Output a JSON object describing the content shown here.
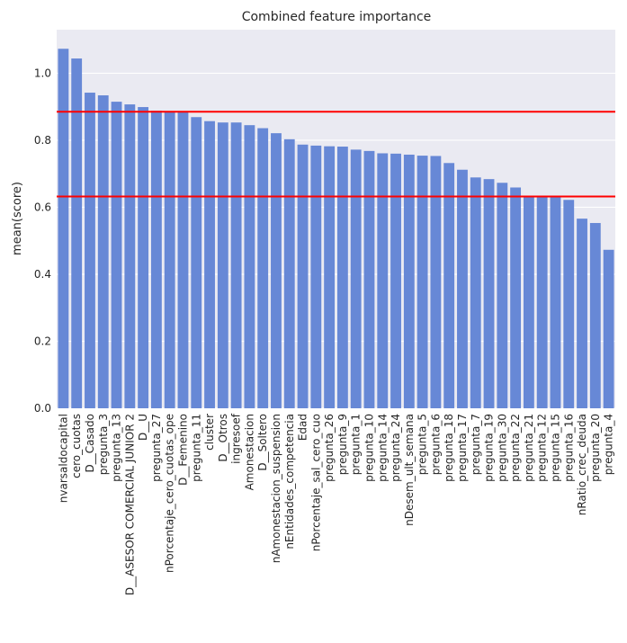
{
  "chart_data": {
    "type": "bar",
    "title": "Combined feature importance",
    "xlabel": "",
    "ylabel": "mean(score)",
    "ylim": [
      0,
      1.13
    ],
    "yticks": [
      "0.0",
      "0.2",
      "0.4",
      "0.6",
      "0.8",
      "1.0"
    ],
    "grid": true,
    "bar_color": "#6788d6",
    "plot_background": "#eaeaf2",
    "reference_line_color": "#ff0000",
    "reference_lines": [
      0.885,
      0.632
    ],
    "categories": [
      "nvarsaldocapital",
      "cero_cuotas",
      "D__Casado",
      "pregunta_3",
      "pregunta_13",
      "D__ASESOR COMERCIAL JUNIOR 2",
      "D__U",
      "pregunta_27",
      "nPorcentaje_cero_cuotas_ope",
      "D__Femenino",
      "pregunta_11",
      "cluster",
      "D__Otros",
      "ingresoef",
      "Amonestacion",
      "D__Soltero",
      "nAmonestacion_suspension",
      "nEntidades_competencia",
      "Edad",
      "nPorcentaje_sal_cero_cuo",
      "pregunta_26",
      "pregunta_9",
      "pregunta_1",
      "pregunta_10",
      "pregunta_14",
      "pregunta_24",
      "nDesem_ult_semana",
      "pregunta_5",
      "pregunta_6",
      "pregunta_18",
      "pregunta_17",
      "pregunta_7",
      "pregunta_19",
      "pregunta_30",
      "pregunta_22",
      "pregunta_21",
      "pregunta_12",
      "pregunta_15",
      "pregunta_16",
      "nRatio_crec_deuda",
      "pregunta_20",
      "pregunta_4"
    ],
    "values": [
      1.073,
      1.044,
      0.942,
      0.934,
      0.915,
      0.907,
      0.899,
      0.888,
      0.885,
      0.883,
      0.869,
      0.857,
      0.853,
      0.853,
      0.845,
      0.836,
      0.821,
      0.803,
      0.787,
      0.784,
      0.782,
      0.781,
      0.772,
      0.768,
      0.761,
      0.76,
      0.757,
      0.754,
      0.753,
      0.732,
      0.712,
      0.689,
      0.684,
      0.673,
      0.659,
      0.634,
      0.633,
      0.632,
      0.622,
      0.566,
      0.553,
      0.473
    ]
  }
}
